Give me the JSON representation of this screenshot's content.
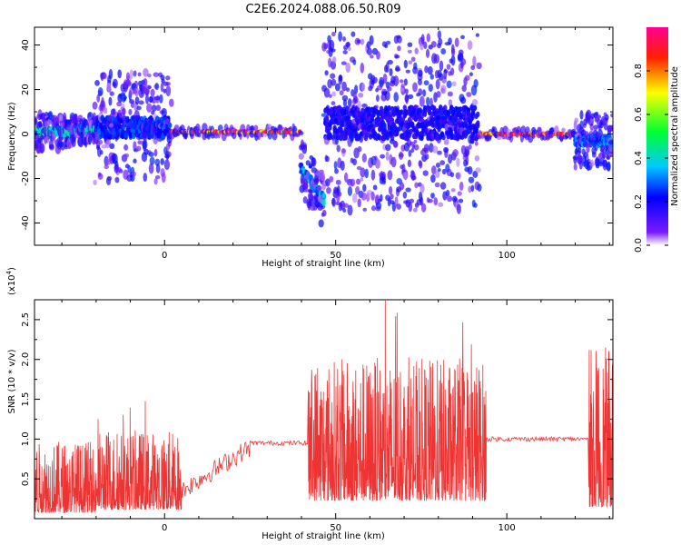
{
  "figure": {
    "title": "C2E6.2024.088.06.50.R09"
  },
  "chart_data": [
    {
      "type": "heatmap",
      "xlabel": "Height of straight line (km)",
      "ylabel": "Frequency (Hz)",
      "xlim": [
        -38,
        131
      ],
      "ylim": [
        -50,
        48
      ],
      "x_ticks": [
        0,
        50,
        100
      ],
      "y_ticks": [
        40,
        20,
        0,
        -20,
        -40
      ],
      "colorbar": {
        "label": "Normalized spectral amplitude",
        "ticks": [
          "0.0",
          "0.2",
          "0.4",
          "0.6",
          "0.8"
        ],
        "tick_values": [
          0.0,
          0.2,
          0.4,
          0.6,
          0.8
        ],
        "range": [
          0,
          1
        ],
        "colormap": "rainbow",
        "stops": [
          "#ffffff",
          "#6a00ff",
          "#0000ff",
          "#00d0ff",
          "#00ff40",
          "#ffff00",
          "#ff0000",
          "#ff00a0"
        ]
      },
      "regions": [
        {
          "x": [
            -38,
            -27
          ],
          "f_center": 1,
          "f_spread": 8,
          "level": 0.45
        },
        {
          "x": [
            -27,
            -20
          ],
          "f_center": 2,
          "f_spread": 6,
          "level": 0.4
        },
        {
          "x": [
            -20,
            2
          ],
          "f_center": 3,
          "f_spread": 25,
          "level": 0.25
        },
        {
          "x": [
            2,
            40
          ],
          "f_center": 1,
          "f_spread": 2,
          "level": 0.9
        },
        {
          "x": [
            40,
            47
          ],
          "f_center": -15,
          "f_spread": 12,
          "level": 0.35
        },
        {
          "x": [
            47,
            92
          ],
          "f_center": 5,
          "f_spread": 40,
          "level": 0.2
        },
        {
          "x": [
            92,
            120
          ],
          "f_center": 0,
          "f_spread": 2,
          "level": 0.9
        },
        {
          "x": [
            120,
            131
          ],
          "f_center": -3,
          "f_spread": 12,
          "level": 0.3
        }
      ]
    },
    {
      "type": "line",
      "xlabel": "Height of straight line (km)",
      "ylabel": "SNR (10 * v/v)",
      "y_multiplier": "(x10^4)",
      "y_multiplier_base": "(x10",
      "y_multiplier_exp": "4",
      "xlim": [
        -38,
        131
      ],
      "ylim": [
        0,
        2.75
      ],
      "x_ticks": [
        0,
        50,
        100
      ],
      "y_ticks": [
        0.5,
        1.0,
        1.5,
        2.0,
        2.5
      ],
      "y_tick_labels": [
        "0.5",
        "1.0",
        "1.5",
        "2.0",
        "2.5"
      ],
      "color": "#ee3333",
      "segments": [
        {
          "x": [
            -38,
            -20
          ],
          "base": 0.3,
          "spread": 0.9
        },
        {
          "x": [
            -20,
            5
          ],
          "base": 0.45,
          "spread": 1.0
        },
        {
          "x": [
            5,
            25
          ],
          "base": 0.65,
          "spread": 0.25
        },
        {
          "x": [
            25,
            42
          ],
          "base": 0.95,
          "spread": 0.06
        },
        {
          "x": [
            42,
            94
          ],
          "base": 0.9,
          "spread": 1.8
        },
        {
          "x": [
            94,
            124
          ],
          "base": 1.0,
          "spread": 0.06
        },
        {
          "x": [
            124,
            131
          ],
          "base": 0.6,
          "spread": 2.0
        }
      ]
    }
  ]
}
